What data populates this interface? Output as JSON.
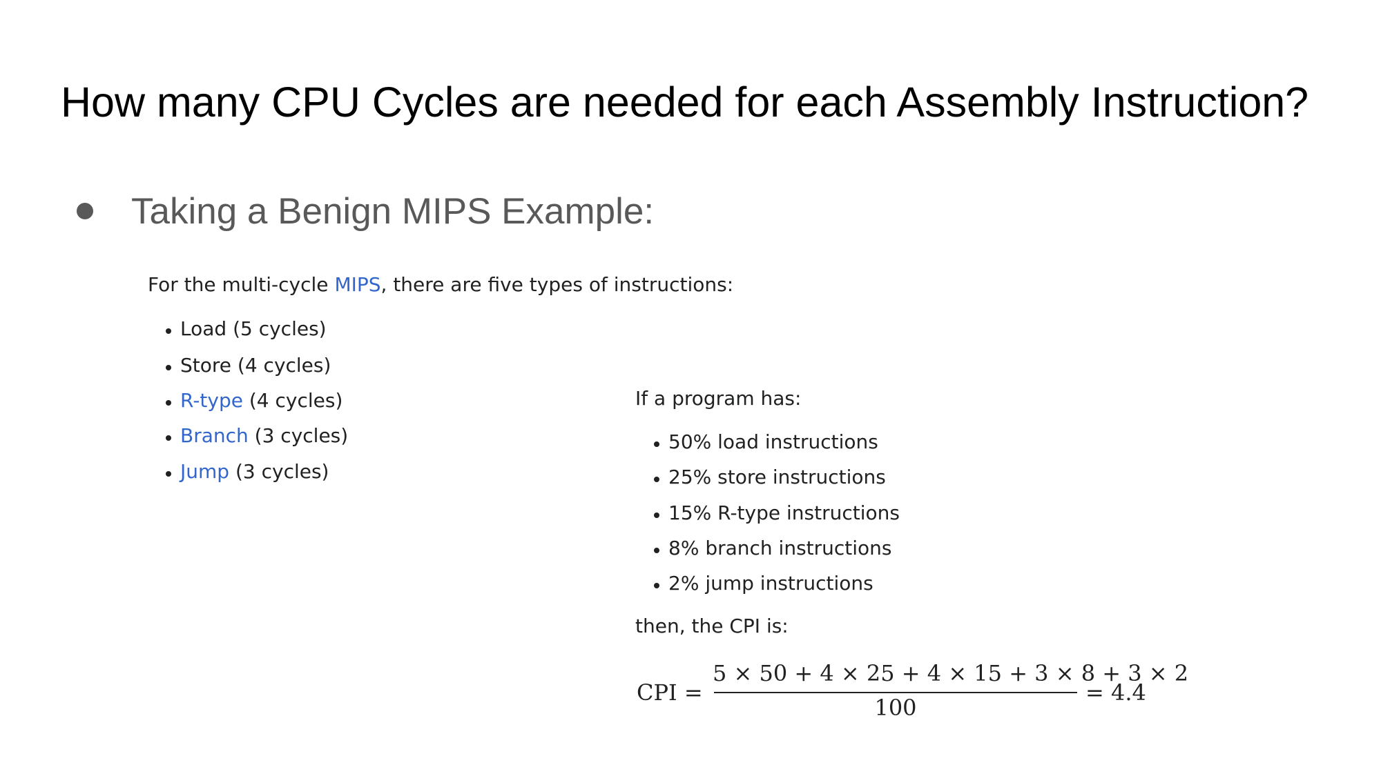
{
  "slide": {
    "title": "How many CPU Cycles are needed for each Assembly Instruction?",
    "bullet": "Taking a Benign MIPS Example:"
  },
  "excerpt": {
    "intro_pre": "For the multi-cycle ",
    "intro_link": "MIPS",
    "intro_post": ", there are five types of instructions:",
    "instruction_types": [
      {
        "link": "",
        "text": "Load (5 cycles)"
      },
      {
        "link": "",
        "text": "Store (4 cycles)"
      },
      {
        "link": "R-type",
        "text": " (4 cycles)"
      },
      {
        "link": "Branch",
        "text": " (3 cycles)"
      },
      {
        "link": "Jump",
        "text": " (3 cycles)"
      }
    ],
    "program_intro": "If a program has:",
    "program_mix": [
      "50% load instructions",
      "25% store instructions",
      "15% R-type instructions",
      "8% branch instructions",
      "2% jump instructions"
    ],
    "then_text": "then, the CPI is:",
    "formula": {
      "lhs": "CPI =",
      "numerator": "5 × 50 + 4 × 25 + 4 × 15 + 3 × 8 + 3 × 2",
      "denominator": "100",
      "rhs": "= 4.4"
    }
  },
  "colors": {
    "title": "#000000",
    "bullet": "#595959",
    "body_text": "#202122",
    "link": "#3366cc"
  }
}
